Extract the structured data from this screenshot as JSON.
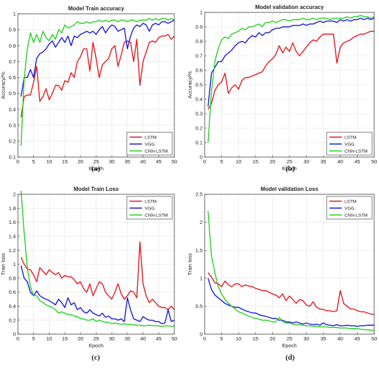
{
  "chart_data": [
    {
      "type": "line",
      "title": "Model Train accuracy",
      "xlabel": "Epoch",
      "ylabel": "Accuracy/%",
      "caption": "(a)",
      "xlim": [
        0,
        50
      ],
      "ylim": [
        0.1,
        1
      ],
      "xticks": [
        0,
        5,
        10,
        15,
        20,
        25,
        30,
        35,
        40,
        45,
        50
      ],
      "yticks": [
        0.1,
        0.2,
        0.3,
        0.4,
        0.5,
        0.6,
        0.7,
        0.8,
        0.9,
        1
      ],
      "grid": true,
      "legend_position": "bottom-right",
      "x": [
        1,
        2,
        3,
        4,
        5,
        6,
        7,
        8,
        9,
        10,
        11,
        12,
        13,
        14,
        15,
        16,
        17,
        18,
        19,
        20,
        21,
        22,
        23,
        24,
        25,
        26,
        27,
        28,
        29,
        30,
        31,
        32,
        33,
        34,
        35,
        36,
        37,
        38,
        39,
        40,
        41,
        42,
        43,
        44,
        45,
        46,
        47,
        48,
        49,
        50
      ],
      "series": [
        {
          "name": "LSTM",
          "color": "#e8141a",
          "values": [
            0.35,
            0.48,
            0.49,
            0.49,
            0.57,
            0.67,
            0.45,
            0.48,
            0.53,
            0.46,
            0.5,
            0.55,
            0.55,
            0.52,
            0.58,
            0.57,
            0.63,
            0.6,
            0.7,
            0.73,
            0.78,
            0.78,
            0.64,
            0.82,
            0.72,
            0.6,
            0.68,
            0.7,
            0.72,
            0.78,
            0.8,
            0.67,
            0.74,
            0.82,
            0.83,
            0.82,
            0.7,
            0.84,
            0.55,
            0.7,
            0.76,
            0.82,
            0.83,
            0.82,
            0.85,
            0.86,
            0.86,
            0.87,
            0.84,
            0.86
          ]
        },
        {
          "name": "VGG",
          "color": "#1515e0",
          "values": [
            0.48,
            0.6,
            0.6,
            0.65,
            0.6,
            0.72,
            0.75,
            0.76,
            0.78,
            0.81,
            0.83,
            0.79,
            0.82,
            0.85,
            0.82,
            0.86,
            0.8,
            0.86,
            0.85,
            0.87,
            0.88,
            0.89,
            0.88,
            0.89,
            0.87,
            0.9,
            0.92,
            0.88,
            0.91,
            0.93,
            0.92,
            0.89,
            0.9,
            0.91,
            0.78,
            0.86,
            0.91,
            0.93,
            0.92,
            0.94,
            0.93,
            0.89,
            0.93,
            0.94,
            0.93,
            0.95,
            0.95,
            0.94,
            0.95,
            0.96
          ]
        },
        {
          "name": "CNN-LSTM",
          "color": "#22d11e",
          "values": [
            0.17,
            0.59,
            0.78,
            0.88,
            0.82,
            0.87,
            0.82,
            0.89,
            0.85,
            0.83,
            0.87,
            0.84,
            0.9,
            0.88,
            0.93,
            0.91,
            0.92,
            0.93,
            0.95,
            0.94,
            0.94,
            0.95,
            0.94,
            0.95,
            0.95,
            0.96,
            0.95,
            0.96,
            0.95,
            0.96,
            0.96,
            0.95,
            0.96,
            0.96,
            0.95,
            0.96,
            0.96,
            0.95,
            0.96,
            0.96,
            0.96,
            0.97,
            0.96,
            0.97,
            0.96,
            0.97,
            0.97,
            0.96,
            0.97,
            0.96
          ]
        }
      ]
    },
    {
      "type": "line",
      "title": "Model validation accuracy",
      "xlabel": "Epoch",
      "ylabel": "Accuracy/%",
      "caption": "(b)",
      "xlim": [
        0,
        50
      ],
      "ylim": [
        0,
        1
      ],
      "xticks": [
        0,
        5,
        10,
        15,
        20,
        25,
        30,
        35,
        40,
        45,
        50
      ],
      "yticks": [
        0,
        0.1,
        0.2,
        0.3,
        0.4,
        0.5,
        0.6,
        0.7,
        0.8,
        0.9,
        1
      ],
      "grid": true,
      "legend_position": "bottom-right",
      "x": [
        1,
        2,
        3,
        4,
        5,
        6,
        7,
        8,
        9,
        10,
        11,
        12,
        13,
        14,
        15,
        16,
        17,
        18,
        19,
        20,
        21,
        22,
        23,
        24,
        25,
        26,
        27,
        28,
        29,
        30,
        31,
        32,
        33,
        34,
        35,
        36,
        37,
        38,
        39,
        40,
        41,
        42,
        43,
        44,
        45,
        46,
        47,
        48,
        49,
        50
      ],
      "series": [
        {
          "name": "LSTM",
          "color": "#e8141a",
          "values": [
            0.33,
            0.37,
            0.46,
            0.5,
            0.52,
            0.58,
            0.44,
            0.48,
            0.5,
            0.47,
            0.53,
            0.55,
            0.55,
            0.56,
            0.57,
            0.58,
            0.59,
            0.63,
            0.66,
            0.68,
            0.71,
            0.77,
            0.72,
            0.76,
            0.73,
            0.79,
            0.73,
            0.7,
            0.73,
            0.76,
            0.79,
            0.81,
            0.8,
            0.83,
            0.85,
            0.85,
            0.85,
            0.85,
            0.65,
            0.76,
            0.79,
            0.8,
            0.81,
            0.83,
            0.84,
            0.85,
            0.85,
            0.86,
            0.87,
            0.87
          ]
        },
        {
          "name": "VGG",
          "color": "#1515e0",
          "values": [
            0.35,
            0.58,
            0.62,
            0.66,
            0.66,
            0.7,
            0.72,
            0.74,
            0.77,
            0.79,
            0.8,
            0.79,
            0.82,
            0.84,
            0.83,
            0.86,
            0.84,
            0.86,
            0.86,
            0.88,
            0.89,
            0.89,
            0.9,
            0.9,
            0.9,
            0.91,
            0.91,
            0.91,
            0.92,
            0.91,
            0.92,
            0.92,
            0.93,
            0.94,
            0.93,
            0.94,
            0.94,
            0.94,
            0.93,
            0.95,
            0.94,
            0.95,
            0.94,
            0.95,
            0.95,
            0.96,
            0.95,
            0.96,
            0.95,
            0.96
          ]
        },
        {
          "name": "CNN-LSTM",
          "color": "#22d11e",
          "values": [
            0.1,
            0.45,
            0.66,
            0.75,
            0.81,
            0.83,
            0.82,
            0.85,
            0.86,
            0.87,
            0.89,
            0.88,
            0.9,
            0.9,
            0.91,
            0.92,
            0.9,
            0.93,
            0.93,
            0.94,
            0.93,
            0.94,
            0.95,
            0.95,
            0.94,
            0.95,
            0.95,
            0.95,
            0.96,
            0.95,
            0.95,
            0.96,
            0.95,
            0.96,
            0.96,
            0.96,
            0.95,
            0.96,
            0.96,
            0.96,
            0.96,
            0.97,
            0.96,
            0.97,
            0.97,
            0.98,
            0.97,
            0.97,
            0.96,
            0.97
          ]
        }
      ]
    },
    {
      "type": "line",
      "title": "Model Train Loss",
      "xlabel": "Epoch",
      "ylabel": "Train loss",
      "caption": "(c)",
      "xlim": [
        0,
        50
      ],
      "ylim": [
        0,
        2
      ],
      "xticks": [
        0,
        5,
        10,
        15,
        20,
        25,
        30,
        35,
        40,
        45,
        50
      ],
      "yticks": [
        0,
        0.2,
        0.4,
        0.6,
        0.8,
        1,
        1.2,
        1.4,
        1.6,
        1.8,
        2
      ],
      "grid": true,
      "legend_position": "top-right",
      "x": [
        1,
        2,
        3,
        4,
        5,
        6,
        7,
        8,
        9,
        10,
        11,
        12,
        13,
        14,
        15,
        16,
        17,
        18,
        19,
        20,
        21,
        22,
        23,
        24,
        25,
        26,
        27,
        28,
        29,
        30,
        31,
        32,
        33,
        34,
        35,
        36,
        37,
        38,
        39,
        40,
        41,
        42,
        43,
        44,
        45,
        46,
        47,
        48,
        49,
        50
      ],
      "series": [
        {
          "name": "LSTM",
          "color": "#e8141a",
          "values": [
            1.1,
            1.0,
            0.93,
            0.92,
            0.85,
            0.75,
            0.95,
            0.9,
            0.85,
            0.92,
            0.88,
            0.85,
            0.88,
            0.8,
            0.84,
            0.82,
            0.82,
            0.78,
            0.72,
            0.75,
            0.65,
            0.6,
            0.72,
            0.55,
            0.65,
            0.75,
            0.72,
            0.6,
            0.55,
            0.5,
            0.6,
            0.72,
            0.58,
            0.5,
            0.55,
            0.62,
            0.6,
            0.52,
            1.32,
            0.72,
            0.55,
            0.45,
            0.5,
            0.45,
            0.4,
            0.38,
            0.38,
            0.35,
            0.4,
            0.35
          ]
        },
        {
          "name": "VGG",
          "color": "#1515e0",
          "values": [
            0.98,
            0.8,
            0.75,
            0.6,
            0.55,
            0.62,
            0.55,
            0.52,
            0.5,
            0.48,
            0.45,
            0.42,
            0.5,
            0.45,
            0.38,
            0.52,
            0.42,
            0.45,
            0.35,
            0.38,
            0.32,
            0.3,
            0.35,
            0.3,
            0.28,
            0.26,
            0.3,
            0.24,
            0.26,
            0.22,
            0.22,
            0.2,
            0.22,
            0.18,
            0.52,
            0.35,
            0.22,
            0.2,
            0.18,
            0.25,
            0.22,
            0.2,
            0.2,
            0.18,
            0.18,
            0.15,
            0.16,
            0.35,
            0.18,
            0.2
          ]
        },
        {
          "name": "CNN-LSTM",
          "color": "#22d11e",
          "values": [
            2.05,
            1.45,
            0.95,
            0.68,
            0.55,
            0.55,
            0.48,
            0.45,
            0.42,
            0.4,
            0.38,
            0.35,
            0.3,
            0.32,
            0.3,
            0.28,
            0.28,
            0.26,
            0.25,
            0.22,
            0.22,
            0.2,
            0.2,
            0.22,
            0.18,
            0.2,
            0.18,
            0.17,
            0.17,
            0.15,
            0.16,
            0.15,
            0.14,
            0.15,
            0.14,
            0.14,
            0.13,
            0.13,
            0.13,
            0.12,
            0.12,
            0.13,
            0.12,
            0.12,
            0.12,
            0.11,
            0.12,
            0.12,
            0.11,
            0.12
          ]
        }
      ]
    },
    {
      "type": "line",
      "title": "Model validation Loss",
      "xlabel": "Epoch",
      "ylabel": "Train loss",
      "caption": "(d)",
      "xlim": [
        0,
        50
      ],
      "ylim": [
        0,
        2.5
      ],
      "xticks": [
        0,
        5,
        10,
        15,
        20,
        25,
        30,
        35,
        40,
        45,
        50
      ],
      "yticks": [
        0,
        0.5,
        1,
        1.5,
        2,
        2.5
      ],
      "grid": true,
      "legend_position": "top-right",
      "x": [
        1,
        2,
        3,
        4,
        5,
        6,
        7,
        8,
        9,
        10,
        11,
        12,
        13,
        14,
        15,
        16,
        17,
        18,
        19,
        20,
        21,
        22,
        23,
        24,
        25,
        26,
        27,
        28,
        29,
        30,
        31,
        32,
        33,
        34,
        35,
        36,
        37,
        38,
        39,
        40,
        41,
        42,
        43,
        44,
        45,
        46,
        47,
        48,
        49,
        50
      ],
      "series": [
        {
          "name": "LSTM",
          "color": "#e8141a",
          "values": [
            1.1,
            1.02,
            0.92,
            0.9,
            0.85,
            0.95,
            0.88,
            0.85,
            0.9,
            0.9,
            0.85,
            0.88,
            0.86,
            0.85,
            0.82,
            0.8,
            0.78,
            0.78,
            0.75,
            0.72,
            0.7,
            0.65,
            0.72,
            0.6,
            0.68,
            0.62,
            0.55,
            0.62,
            0.6,
            0.52,
            0.5,
            0.58,
            0.48,
            0.45,
            0.44,
            0.42,
            0.42,
            0.4,
            0.42,
            0.78,
            0.55,
            0.5,
            0.45,
            0.45,
            0.42,
            0.4,
            0.4,
            0.38,
            0.36,
            0.35
          ]
        },
        {
          "name": "VGG",
          "color": "#1515e0",
          "values": [
            1.0,
            0.8,
            0.7,
            0.65,
            0.6,
            0.55,
            0.52,
            0.5,
            0.48,
            0.48,
            0.45,
            0.42,
            0.4,
            0.38,
            0.38,
            0.35,
            0.33,
            0.32,
            0.3,
            0.28,
            0.28,
            0.25,
            0.25,
            0.22,
            0.22,
            0.2,
            0.22,
            0.2,
            0.18,
            0.2,
            0.18,
            0.17,
            0.18,
            0.16,
            0.2,
            0.17,
            0.16,
            0.15,
            0.17,
            0.15,
            0.15,
            0.16,
            0.15,
            0.15,
            0.14,
            0.15,
            0.15,
            0.16,
            0.16,
            0.16
          ]
        },
        {
          "name": "CNN-LSTM",
          "color": "#22d11e",
          "values": [
            2.2,
            1.4,
            1.1,
            0.85,
            0.72,
            0.62,
            0.55,
            0.5,
            0.45,
            0.4,
            0.38,
            0.35,
            0.32,
            0.3,
            0.28,
            0.27,
            0.25,
            0.25,
            0.24,
            0.22,
            0.22,
            0.3,
            0.22,
            0.2,
            0.2,
            0.18,
            0.17,
            0.17,
            0.16,
            0.15,
            0.15,
            0.14,
            0.14,
            0.13,
            0.13,
            0.13,
            0.12,
            0.12,
            0.12,
            0.11,
            0.11,
            0.11,
            0.1,
            0.1,
            0.1,
            0.09,
            0.08,
            0.08,
            0.07,
            0.07
          ]
        }
      ]
    }
  ]
}
